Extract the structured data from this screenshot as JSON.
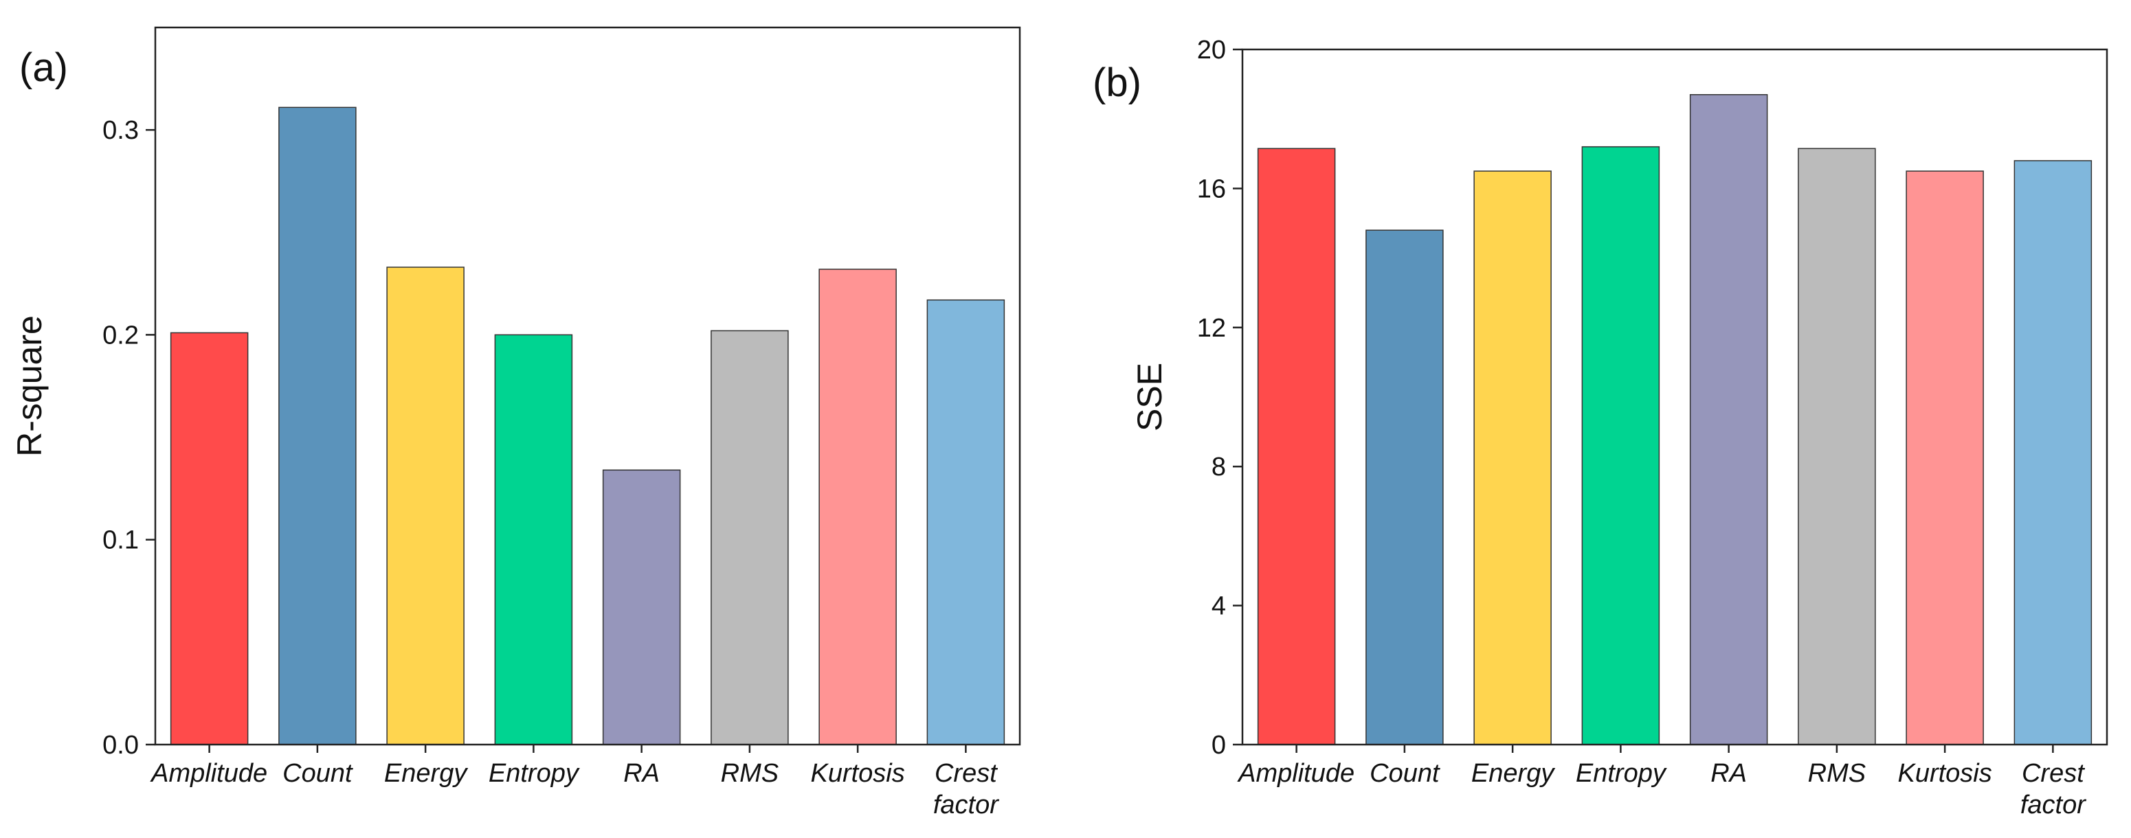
{
  "chart_data": [
    {
      "type": "bar",
      "panel_label": "(a)",
      "title": "",
      "xlabel": "",
      "ylabel": "R-square",
      "ylim": [
        0,
        0.35
      ],
      "yticks": [
        0.0,
        0.1,
        0.2,
        0.3
      ],
      "ytick_labels": [
        "0.0",
        "0.1",
        "0.2",
        "0.3"
      ],
      "categories": [
        "Amplitude",
        "Count",
        "Energy",
        "Entropy",
        "RA",
        "RMS",
        "Kurtosis",
        "Crest factor"
      ],
      "category_lines": [
        [
          "Amplitude"
        ],
        [
          "Count"
        ],
        [
          "Energy"
        ],
        [
          "Entropy"
        ],
        [
          "RA"
        ],
        [
          "RMS"
        ],
        [
          "Kurtosis"
        ],
        [
          "Crest",
          "factor"
        ]
      ],
      "values": [
        0.201,
        0.311,
        0.233,
        0.2,
        0.134,
        0.202,
        0.232,
        0.217
      ],
      "colors": [
        "#FF4B4B",
        "#5B93BB",
        "#FFD54F",
        "#00D491",
        "#9696BB",
        "#BBBBBB",
        "#FF9494",
        "#80B7DC"
      ],
      "grid": false,
      "legend": "none"
    },
    {
      "type": "bar",
      "panel_label": "(b)",
      "title": "",
      "xlabel": "",
      "ylabel": "SSE",
      "ylim": [
        0,
        20
      ],
      "yticks": [
        0,
        4,
        8,
        12,
        16,
        20
      ],
      "ytick_labels": [
        "0",
        "4",
        "8",
        "12",
        "16",
        "20"
      ],
      "categories": [
        "Amplitude",
        "Count",
        "Energy",
        "Entropy",
        "RA",
        "RMS",
        "Kurtosis",
        "Crest factor"
      ],
      "category_lines": [
        [
          "Amplitude"
        ],
        [
          "Count"
        ],
        [
          "Energy"
        ],
        [
          "Entropy"
        ],
        [
          "RA"
        ],
        [
          "RMS"
        ],
        [
          "Kurtosis"
        ],
        [
          "Crest",
          "factor"
        ]
      ],
      "values": [
        17.15,
        14.8,
        16.5,
        17.2,
        18.7,
        17.15,
        16.5,
        16.8
      ],
      "colors": [
        "#FF4B4B",
        "#5B93BB",
        "#FFD54F",
        "#00D491",
        "#9696BB",
        "#BBBBBB",
        "#FF9494",
        "#80B7DC"
      ],
      "grid": false,
      "legend": "none"
    }
  ]
}
